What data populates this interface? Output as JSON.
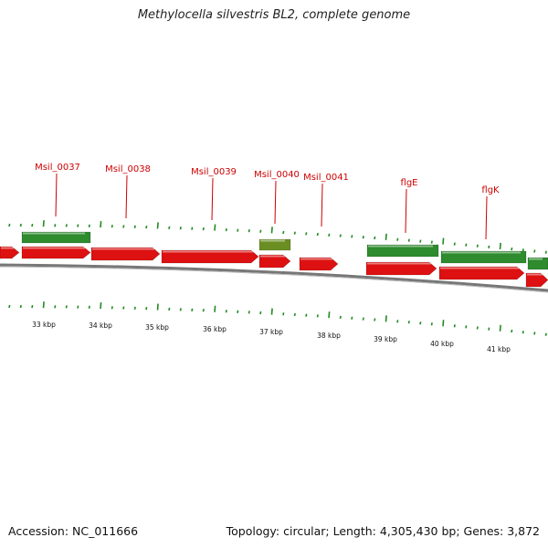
{
  "header": {
    "title": "Methylocella silvestris BL2, complete genome"
  },
  "footer": {
    "accession": "Accession: NC_011666",
    "summary": "Topology: circular; Length: 4,305,430 bp; Genes: 3,872"
  },
  "colors": {
    "forward_cds": "#dd1111",
    "reverse_cds": "#2e8b2e",
    "highlight_cds": "#6b8e23",
    "label": "#cc0000",
    "tick": "#228b22",
    "backbone": "#777777"
  },
  "gene_labels": [
    {
      "text": "Msil_0037"
    },
    {
      "text": "Msil_0038"
    },
    {
      "text": "Msil_0039"
    },
    {
      "text": "Msil_0040"
    },
    {
      "text": "Msil_0041"
    },
    {
      "text": "flgE"
    },
    {
      "text": "flgK"
    }
  ],
  "scale_labels": [
    "33 kbp",
    "34 kbp",
    "35 kbp",
    "36 kbp",
    "37 kbp",
    "38 kbp",
    "39 kbp",
    "40 kbp",
    "41 kbp"
  ]
}
